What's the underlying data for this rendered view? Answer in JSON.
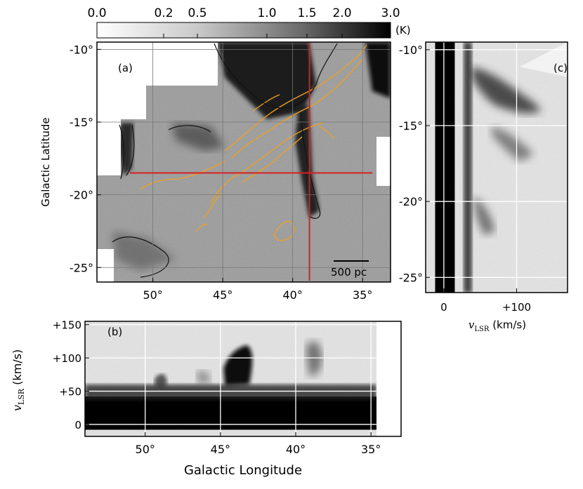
{
  "colorbar": {
    "ticks": [
      "0.0",
      "0.2",
      "0.5",
      "1.0",
      "1.5",
      "2.0",
      "3.0"
    ],
    "tick_values": [
      0.0,
      0.2,
      0.5,
      1.0,
      1.5,
      2.0,
      3.0
    ],
    "unit": "(K)",
    "colormap": "grayscale, white to black"
  },
  "colors": {
    "contour_orange": "#f0a020",
    "contour_black": "#111111",
    "crosshair_red": "#d42020",
    "grid_white": "#ffffff"
  },
  "chart_data": [
    {
      "panel": "(a)",
      "type": "heatmap",
      "ylabel": "Galactic Latitude",
      "xlim": [
        54,
        33
      ],
      "ylim": [
        -26,
        -9.5
      ],
      "x_ticks": [
        50,
        45,
        40,
        35
      ],
      "x_tick_labels": [
        "50°",
        "45°",
        "40°",
        "35°"
      ],
      "y_ticks": [
        -10,
        -15,
        -20,
        -25
      ],
      "y_tick_labels": [
        "-10°",
        "-15°",
        "-20°",
        "-25°"
      ],
      "crosshair": {
        "longitude": 38.8,
        "latitude": -18.5
      },
      "scalebar_label": "500 pc",
      "contours": [
        "orange",
        "black"
      ]
    },
    {
      "panel": "(b)",
      "type": "heatmap",
      "xlabel": "Galactic Longitude",
      "ylabel": "v_LSR (km/s)",
      "xlim": [
        54,
        33
      ],
      "ylim": [
        -18,
        155
      ],
      "x_ticks": [
        50,
        45,
        40,
        35
      ],
      "x_tick_labels": [
        "50°",
        "45°",
        "40°",
        "35°"
      ],
      "y_ticks": [
        150,
        100,
        50,
        0
      ],
      "y_tick_labels": [
        "+150",
        "+100",
        "+50",
        "0"
      ],
      "grid": true
    },
    {
      "panel": "(c)",
      "type": "heatmap",
      "xlabel": "v_LSR (km/s)",
      "xlim": [
        -25,
        170
      ],
      "ylim": [
        -26,
        -9.5
      ],
      "x_ticks": [
        0,
        100
      ],
      "x_tick_labels": [
        "0",
        "+100"
      ],
      "y_ticks": [
        -10,
        -15,
        -20,
        -25
      ],
      "y_tick_labels": [
        "-10°",
        "-15°",
        "-20°",
        "-25°"
      ],
      "grid": true
    }
  ],
  "labels": {
    "panel_a": "(a)",
    "panel_b": "(b)",
    "panel_c": "(c)",
    "y_label_a": "Galactic Latitude",
    "x_label_b": "Galactic Longitude",
    "y_label_b_main": "v",
    "y_label_b_sub": "LSR",
    "y_label_b_unit": " (km/s)",
    "x_label_c_main": "v",
    "x_label_c_sub": "LSR",
    "x_label_c_unit": " (km/s)",
    "scalebar": "500 pc"
  }
}
